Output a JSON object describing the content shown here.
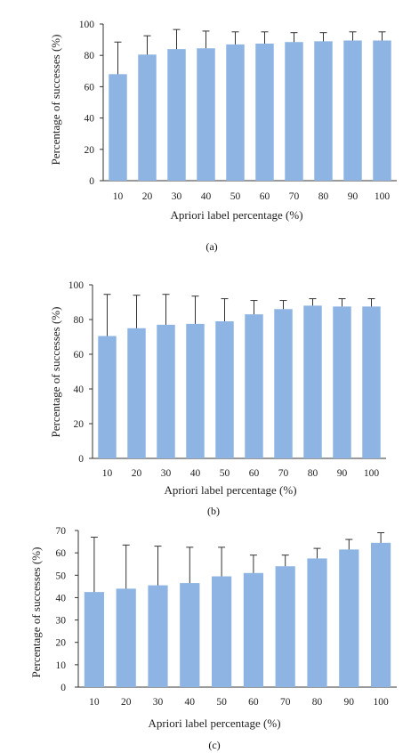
{
  "colors": {
    "bar": "#8db4e2",
    "error_bar": "#333333",
    "axis": "#333333",
    "text": "#222222"
  },
  "chart_data": [
    {
      "type": "bar",
      "caption": "(a)",
      "xlabel": "Apriori label percentage (%)",
      "ylabel": "Percentage of successes (%)",
      "categories": [
        "10",
        "20",
        "30",
        "40",
        "50",
        "60",
        "70",
        "80",
        "90",
        "100"
      ],
      "values": [
        68,
        80.5,
        84,
        84.5,
        87,
        87.5,
        88.5,
        89,
        89.5,
        89.5
      ],
      "error_upper": [
        88.5,
        92.5,
        96.5,
        95.5,
        95,
        95,
        94.5,
        94.5,
        95,
        95
      ],
      "ylim": [
        0,
        100
      ],
      "yticks": [
        "0",
        "20",
        "40",
        "60",
        "80",
        "100"
      ],
      "grid": false,
      "legend": "none"
    },
    {
      "type": "bar",
      "caption": "(b)",
      "xlabel": "Apriori label percentage (%)",
      "ylabel": "Percentage of successes (%)",
      "categories": [
        "10",
        "20",
        "30",
        "40",
        "50",
        "60",
        "70",
        "80",
        "90",
        "100"
      ],
      "values": [
        70.5,
        75,
        77,
        77.5,
        79,
        83,
        86,
        88,
        87.5,
        87.5
      ],
      "error_upper": [
        94.5,
        94,
        94.5,
        93.5,
        92,
        91,
        91,
        92,
        92,
        92
      ],
      "ylim": [
        0,
        100
      ],
      "yticks": [
        "0",
        "20",
        "40",
        "60",
        "80",
        "100"
      ],
      "grid": false,
      "legend": "none"
    },
    {
      "type": "bar",
      "caption": "(c)",
      "xlabel": "Apriori label percentage (%)",
      "ylabel": "Percentage of successes (%)",
      "categories": [
        "10",
        "20",
        "30",
        "40",
        "50",
        "60",
        "70",
        "80",
        "90",
        "100"
      ],
      "values": [
        42.5,
        44,
        45.5,
        46.5,
        49.5,
        51,
        54,
        57.5,
        61.5,
        64.5
      ],
      "error_upper": [
        67,
        63.5,
        63,
        62.5,
        62.5,
        59,
        59,
        62,
        66,
        69
      ],
      "ylim": [
        0,
        70
      ],
      "yticks": [
        "0",
        "10",
        "20",
        "30",
        "40",
        "50",
        "60",
        "70"
      ],
      "grid": false,
      "legend": "none"
    }
  ]
}
